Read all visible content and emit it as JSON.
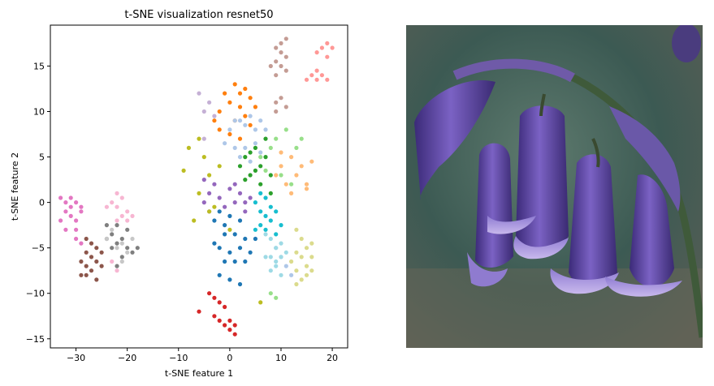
{
  "chart_data": {
    "type": "scatter",
    "title": "t-SNE visualization resnet50",
    "xlabel": "t-SNE feature 1",
    "ylabel": "t-SNE feature 2",
    "xlim": [
      -35,
      23
    ],
    "ylim": [
      -16,
      19.5
    ],
    "xticks": [
      -30,
      -20,
      -10,
      0,
      10,
      20
    ],
    "yticks": [
      -15,
      -10,
      -5,
      0,
      5,
      10,
      15
    ],
    "grid": false,
    "series": [
      {
        "color": "#1f77b4",
        "points": [
          [
            -3,
            -2
          ],
          [
            -2,
            -1
          ],
          [
            0,
            -1.5
          ],
          [
            2,
            -2
          ],
          [
            -1,
            -3.5
          ],
          [
            1,
            -3.5
          ],
          [
            3,
            -4
          ],
          [
            -2,
            -5
          ],
          [
            0,
            -5.5
          ],
          [
            2,
            -5
          ],
          [
            4,
            -5.5
          ],
          [
            -1,
            -6.5
          ],
          [
            1,
            -6.5
          ],
          [
            3,
            -6.5
          ],
          [
            -2,
            -8
          ],
          [
            0,
            -8.5
          ],
          [
            2,
            -9
          ],
          [
            -3,
            -4.5
          ],
          [
            5,
            -4
          ],
          [
            -1,
            -2.5
          ]
        ]
      },
      {
        "color": "#ff7f0e",
        "points": [
          [
            1,
            13
          ],
          [
            2,
            12
          ],
          [
            3,
            12.5
          ],
          [
            4,
            11.5
          ],
          [
            -1,
            12
          ],
          [
            0,
            11
          ],
          [
            2,
            10.5
          ],
          [
            3,
            9.5
          ],
          [
            -2,
            10
          ],
          [
            -3,
            9
          ],
          [
            1,
            9
          ],
          [
            5,
            10.5
          ],
          [
            4,
            8.5
          ],
          [
            -2,
            8
          ],
          [
            0,
            7.5
          ],
          [
            2,
            7
          ]
        ]
      },
      {
        "color": "#2ca02c",
        "points": [
          [
            2,
            4
          ],
          [
            3,
            5
          ],
          [
            4,
            3
          ],
          [
            5,
            6
          ],
          [
            6,
            4
          ],
          [
            7,
            5
          ],
          [
            8,
            3
          ],
          [
            6,
            2
          ],
          [
            4,
            5.5
          ],
          [
            7,
            7
          ],
          [
            8,
            1
          ],
          [
            3,
            2.5
          ],
          [
            5,
            3.5
          ]
        ]
      },
      {
        "color": "#d62728",
        "points": [
          [
            -4,
            -10
          ],
          [
            -3,
            -10.5
          ],
          [
            -2,
            -11
          ],
          [
            -1,
            -11.5
          ],
          [
            -6,
            -12
          ],
          [
            -3,
            -12.5
          ],
          [
            -2,
            -13
          ],
          [
            -1,
            -13.5
          ],
          [
            0,
            -13
          ],
          [
            0,
            -14
          ],
          [
            1,
            -14.5
          ],
          [
            1,
            -13.5
          ]
        ]
      },
      {
        "color": "#9467bd",
        "points": [
          [
            -5,
            0
          ],
          [
            -4,
            1
          ],
          [
            -2,
            0.5
          ],
          [
            -1,
            -0.5
          ],
          [
            0,
            1.5
          ],
          [
            1,
            0
          ],
          [
            2,
            1
          ],
          [
            3,
            -1
          ],
          [
            4,
            0.5
          ],
          [
            -3,
            2
          ],
          [
            -5,
            2.5
          ],
          [
            -4,
            -1
          ],
          [
            1,
            2
          ],
          [
            3,
            0
          ]
        ]
      },
      {
        "color": "#8c564b",
        "points": [
          [
            -28,
            -4
          ],
          [
            -27,
            -4.5
          ],
          [
            -26,
            -5
          ],
          [
            -28,
            -5.5
          ],
          [
            -27,
            -6
          ],
          [
            -29,
            -6.5
          ],
          [
            -26,
            -6.5
          ],
          [
            -28,
            -7
          ],
          [
            -27,
            -7.5
          ],
          [
            -29,
            -8
          ],
          [
            -28,
            -8
          ],
          [
            -26,
            -8.5
          ],
          [
            -25,
            -5.5
          ],
          [
            -25,
            -7
          ]
        ]
      },
      {
        "color": "#e377c2",
        "points": [
          [
            -33,
            0.5
          ],
          [
            -32,
            0
          ],
          [
            -31,
            -0.5
          ],
          [
            -30,
            0
          ],
          [
            -32,
            -1
          ],
          [
            -31,
            -1.5
          ],
          [
            -30,
            -2
          ],
          [
            -29,
            -1
          ],
          [
            -33,
            -2
          ],
          [
            -32,
            -3
          ],
          [
            -30,
            -3
          ],
          [
            -29,
            -0.5
          ],
          [
            -31,
            0.5
          ],
          [
            -30,
            -4
          ],
          [
            -29,
            -4.5
          ]
        ]
      },
      {
        "color": "#7f7f7f",
        "points": [
          [
            -24,
            -4
          ],
          [
            -23,
            -3.5
          ],
          [
            -22,
            -4.5
          ],
          [
            -21,
            -4
          ],
          [
            -20,
            -5
          ],
          [
            -19,
            -5.5
          ],
          [
            -21,
            -6
          ],
          [
            -22,
            -7
          ],
          [
            -20,
            -3
          ],
          [
            -23,
            -5
          ],
          [
            -24,
            -2.5
          ],
          [
            -22,
            -2.5
          ],
          [
            -18,
            -5
          ]
        ]
      },
      {
        "color": "#bcbd22",
        "points": [
          [
            -9,
            3.5
          ],
          [
            -8,
            6
          ],
          [
            -6,
            7
          ],
          [
            -5,
            5
          ],
          [
            -4,
            3
          ],
          [
            -6,
            1
          ],
          [
            -7,
            -2
          ],
          [
            0,
            -3
          ],
          [
            -3,
            -0.5
          ],
          [
            -2,
            4
          ],
          [
            -4,
            -1
          ],
          [
            6,
            -11
          ]
        ]
      },
      {
        "color": "#17becf",
        "points": [
          [
            5,
            0
          ],
          [
            6,
            -1
          ],
          [
            7,
            -1.5
          ],
          [
            8,
            -2
          ],
          [
            6,
            -2.5
          ],
          [
            7,
            -3
          ],
          [
            9,
            -3.5
          ],
          [
            5,
            -3
          ],
          [
            8,
            -0.5
          ],
          [
            9,
            -1
          ],
          [
            10,
            -2.5
          ],
          [
            6,
            1
          ],
          [
            7,
            0.5
          ]
        ]
      },
      {
        "color": "#aec7e8",
        "points": [
          [
            0,
            8
          ],
          [
            1,
            9
          ],
          [
            2,
            9
          ],
          [
            3,
            8.5
          ],
          [
            4,
            9.5
          ],
          [
            5,
            8
          ],
          [
            6,
            9
          ],
          [
            7,
            8
          ],
          [
            -1,
            6.5
          ],
          [
            1,
            6
          ],
          [
            3,
            6
          ],
          [
            5,
            6.5
          ],
          [
            2,
            5
          ],
          [
            4,
            4.5
          ],
          [
            6,
            5.5
          ],
          [
            9,
            -5
          ],
          [
            10,
            -6
          ],
          [
            11,
            -7
          ],
          [
            12,
            -8
          ]
        ]
      },
      {
        "color": "#ffbb78",
        "points": [
          [
            9,
            3
          ],
          [
            10,
            4
          ],
          [
            11,
            2
          ],
          [
            12,
            5
          ],
          [
            13,
            3
          ],
          [
            14,
            4
          ],
          [
            15,
            2
          ],
          [
            16,
            4.5
          ],
          [
            12,
            1
          ],
          [
            15,
            1.5
          ],
          [
            10,
            5.5
          ]
        ]
      },
      {
        "color": "#98df8a",
        "points": [
          [
            6,
            5
          ],
          [
            8,
            6
          ],
          [
            10,
            3
          ],
          [
            12,
            2
          ],
          [
            13,
            6
          ],
          [
            9,
            7
          ],
          [
            7,
            3.5
          ],
          [
            11,
            8
          ],
          [
            14,
            7
          ],
          [
            8,
            -10
          ],
          [
            9,
            -10.5
          ]
        ]
      },
      {
        "color": "#ff9896",
        "points": [
          [
            15,
            13.5
          ],
          [
            16,
            14
          ],
          [
            17,
            14.5
          ],
          [
            18,
            14
          ],
          [
            17,
            13.5
          ],
          [
            19,
            16
          ],
          [
            18,
            17
          ],
          [
            19,
            17.5
          ],
          [
            20,
            17
          ],
          [
            17,
            16.5
          ],
          [
            19,
            13.5
          ]
        ]
      },
      {
        "color": "#c5b0d5",
        "points": [
          [
            -5,
            10
          ],
          [
            -6,
            12
          ],
          [
            -4,
            11
          ],
          [
            -3,
            9.5
          ],
          [
            -5,
            7
          ]
        ]
      },
      {
        "color": "#c49c94",
        "points": [
          [
            10,
            17.5
          ],
          [
            11,
            18
          ],
          [
            9,
            17
          ],
          [
            10,
            16.5
          ],
          [
            11,
            16
          ],
          [
            9,
            15.5
          ],
          [
            10,
            15
          ],
          [
            11,
            14.5
          ],
          [
            8,
            15
          ],
          [
            9,
            14
          ],
          [
            10,
            11.5
          ],
          [
            9,
            11
          ],
          [
            11,
            10.5
          ],
          [
            9,
            10
          ]
        ]
      },
      {
        "color": "#f7b6d2",
        "points": [
          [
            -22,
            1
          ],
          [
            -21,
            0.5
          ],
          [
            -23,
            0
          ],
          [
            -22,
            -0.5
          ],
          [
            -20,
            -1
          ],
          [
            -21,
            -1.5
          ],
          [
            -24,
            -0.5
          ],
          [
            -22,
            -2
          ],
          [
            -20,
            -2
          ],
          [
            -19,
            -1.5
          ],
          [
            -22,
            -7.5
          ],
          [
            -23,
            -6.5
          ]
        ]
      },
      {
        "color": "#c7c7c7",
        "points": [
          [
            -24,
            -4
          ],
          [
            -23,
            -3
          ],
          [
            -21,
            -4.5
          ],
          [
            -20,
            -5.5
          ],
          [
            -19,
            -4
          ],
          [
            -22,
            -5
          ],
          [
            -21,
            -6.5
          ]
        ]
      },
      {
        "color": "#dbdb8d",
        "points": [
          [
            13,
            -3
          ],
          [
            14,
            -4
          ],
          [
            15,
            -5
          ],
          [
            16,
            -4.5
          ],
          [
            13,
            -5.5
          ],
          [
            14,
            -6
          ],
          [
            15,
            -7
          ],
          [
            16,
            -6
          ],
          [
            13,
            -7.5
          ],
          [
            14,
            -8.5
          ],
          [
            15,
            -8
          ],
          [
            13,
            -9
          ],
          [
            12,
            -6.5
          ],
          [
            16,
            -7.5
          ]
        ]
      },
      {
        "color": "#9edae5",
        "points": [
          [
            7,
            -3.5
          ],
          [
            8,
            -4
          ],
          [
            9,
            -5
          ],
          [
            10,
            -4.5
          ],
          [
            8,
            -6
          ],
          [
            9,
            -6.5
          ],
          [
            10,
            -6
          ],
          [
            11,
            -5.5
          ],
          [
            7,
            -6
          ],
          [
            8,
            -7.5
          ],
          [
            10,
            -8
          ],
          [
            9,
            -7
          ]
        ]
      }
    ]
  }
}
